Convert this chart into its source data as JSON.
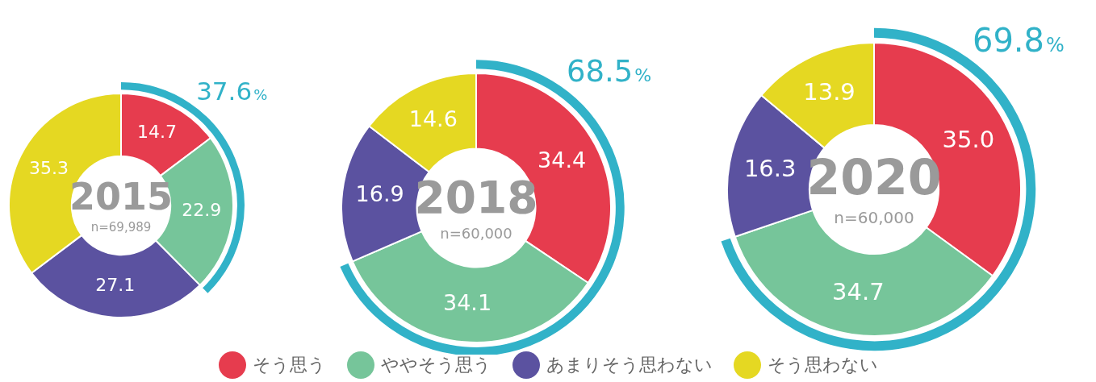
{
  "chart_data": [
    {
      "type": "donut",
      "title": "2015",
      "subtitle": "n=69,989",
      "categories": [
        "そう思う",
        "ややそう思う",
        "あまりそう思わない",
        "そう思わない"
      ],
      "values": [
        14.7,
        22.9,
        27.1,
        35.3
      ],
      "value_labels": [
        "14.7",
        "22.9",
        "27.1",
        "35.3"
      ],
      "colors": [
        "#e63c4e",
        "#76c59a",
        "#5b52a0",
        "#e5d822"
      ],
      "annotations": [
        "37.6%"
      ],
      "legend": "bottom"
    },
    {
      "type": "donut",
      "title": "2018",
      "subtitle": "n=60,000",
      "categories": [
        null,
        null,
        null,
        null
      ],
      "values": [
        34.4,
        34.1,
        16.9,
        14.6
      ],
      "value_labels": [
        "34.4",
        "34.1",
        "16.9",
        "14.6"
      ],
      "colors": [
        "#e63c4e",
        "#76c59a",
        "#5b52a0",
        "#e5d822"
      ],
      "annotations": [
        "68.5%"
      ]
    },
    {
      "type": "donut",
      "title": "2020",
      "subtitle": "n=60,000",
      "categories": [
        null,
        null,
        null,
        null
      ],
      "values": [
        35.0,
        34.7,
        16.3,
        13.9
      ],
      "value_labels": [
        "35.0",
        "34.7",
        "16.3",
        "13.9"
      ],
      "colors": [
        "#e63c4e",
        "#76c59a",
        "#5b52a0",
        "#e5d822"
      ],
      "annotations": [
        "69.8%"
      ]
    }
  ]
}
